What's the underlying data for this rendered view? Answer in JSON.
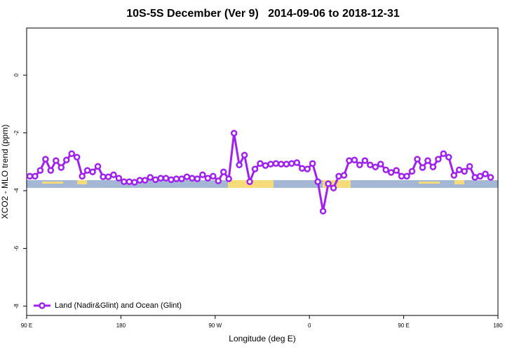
{
  "chart_data": {
    "type": "line",
    "title": "10S-5S December (Ver 9)   2014-09-06 to 2018-12-31",
    "x_label": "Longitude (deg E)",
    "y_label": "XCO2 - MLO trend (ppm)",
    "xlim": [
      90,
      540
    ],
    "ylim": [
      -8.32,
      1.63
    ],
    "xticks": [
      {
        "value": 90,
        "label": "90 E"
      },
      180,
      {
        "value": 270,
        "label": "90 W"
      },
      {
        "value": 360,
        "label": "0"
      },
      {
        "value": 450,
        "label": "90 E"
      },
      {
        "value": 540,
        "label": "180"
      }
    ],
    "yticks": [
      0,
      -2,
      -4,
      -6,
      -8
    ],
    "legend": "bottom-left",
    "x": [
      93,
      98,
      103,
      108,
      113,
      118,
      123,
      128,
      133,
      138,
      143,
      148,
      153,
      158,
      163,
      168,
      173,
      178,
      183,
      188,
      193,
      198,
      203,
      208,
      213,
      218,
      223,
      228,
      233,
      238,
      243,
      248,
      253,
      258,
      263,
      268,
      273,
      278,
      283,
      288,
      293,
      298,
      303,
      308,
      313,
      318,
      323,
      328,
      333,
      338,
      343,
      348,
      353,
      358,
      363,
      368,
      373,
      378,
      383,
      388,
      393,
      398,
      403,
      408,
      413,
      418,
      423,
      428,
      433,
      438,
      443,
      448,
      453,
      458,
      463,
      468,
      473,
      478,
      483,
      488,
      493,
      498,
      503,
      508,
      513,
      518,
      523,
      528,
      533
    ],
    "series": [
      {
        "name": "Land (Nadir&Glint) and Ocean (Glint)",
        "color": "#a020f0",
        "values": [
          -3.5,
          -3.5,
          -3.3,
          -2.91,
          -3.3,
          -2.96,
          -3.2,
          -2.94,
          -2.72,
          -2.84,
          -3.5,
          -3.3,
          -3.35,
          -3.16,
          -3.52,
          -3.52,
          -3.45,
          -3.57,
          -3.69,
          -3.69,
          -3.71,
          -3.64,
          -3.64,
          -3.54,
          -3.62,
          -3.57,
          -3.57,
          -3.62,
          -3.59,
          -3.59,
          -3.52,
          -3.57,
          -3.59,
          -3.45,
          -3.57,
          -3.5,
          -3.66,
          -3.35,
          -3.59,
          -2.01,
          -3.11,
          -2.77,
          -3.69,
          -3.25,
          -3.06,
          -3.13,
          -3.08,
          -3.06,
          -3.08,
          -3.08,
          -3.06,
          -3.03,
          -3.23,
          -3.25,
          -3.06,
          -3.69,
          -4.71,
          -3.76,
          -3.91,
          -3.5,
          -3.47,
          -2.96,
          -2.94,
          -3.11,
          -2.96,
          -3.11,
          -3.18,
          -3.08,
          -3.28,
          -3.37,
          -3.3,
          -3.5,
          -3.5,
          -3.33,
          -2.91,
          -3.2,
          -2.96,
          -3.18,
          -2.91,
          -2.72,
          -2.84,
          -3.47,
          -3.28,
          -3.33,
          -3.16,
          -3.54,
          -3.5,
          -3.42,
          -3.54
        ]
      }
    ]
  }
}
